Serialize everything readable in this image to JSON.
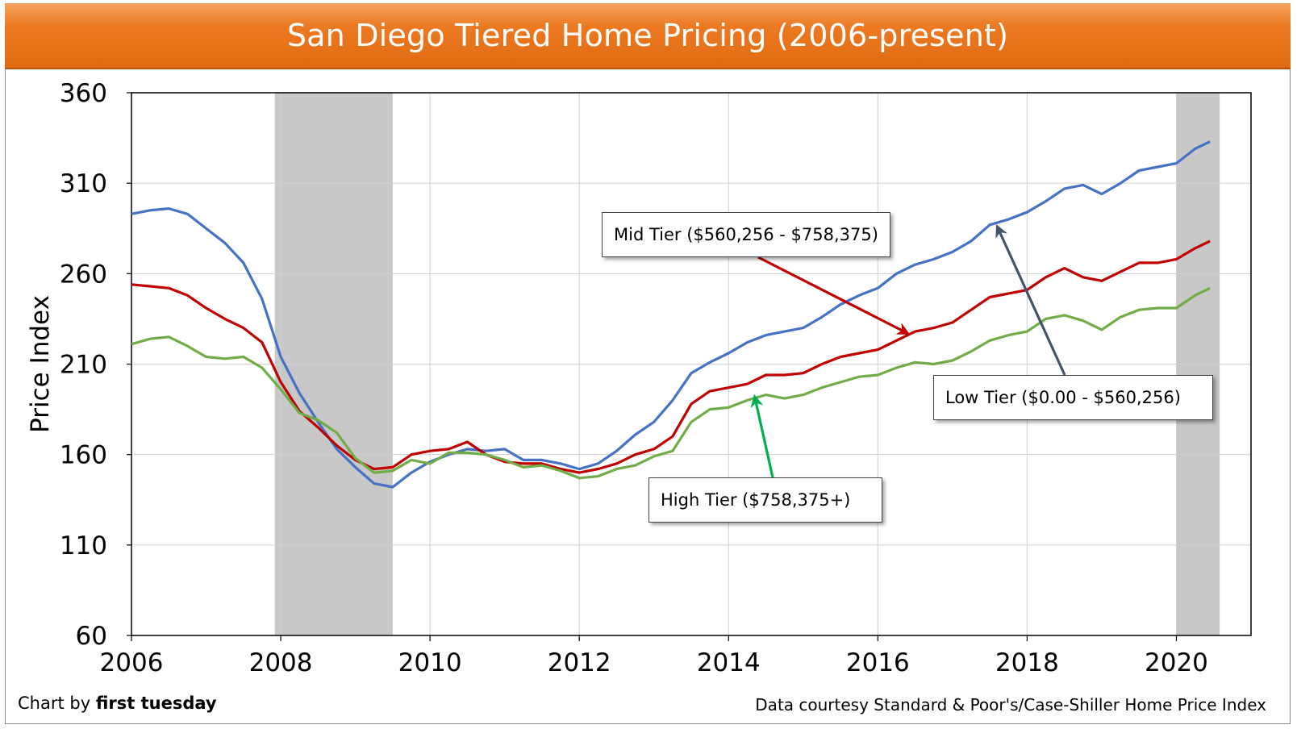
{
  "chart_data": {
    "type": "line",
    "title": "San Diego Tiered Home Pricing (2006-present)",
    "ylabel": "Price Index",
    "xlabel": "",
    "xlim": [
      2006,
      2021
    ],
    "ylim": [
      60,
      360
    ],
    "x_ticks": [
      "2006",
      "2008",
      "2010",
      "2012",
      "2014",
      "2016",
      "2018",
      "2020"
    ],
    "y_ticks": [
      "60",
      "110",
      "160",
      "210",
      "260",
      "310",
      "360"
    ],
    "grid": true,
    "recession_bands": [
      [
        2007.92,
        2009.5
      ],
      [
        2020.0,
        2020.58
      ]
    ],
    "series": [
      {
        "name": "Low Tier ($0.00 - $560,256)",
        "color": "#4472c4",
        "points": [
          [
            2006.0,
            293
          ],
          [
            2006.25,
            295
          ],
          [
            2006.5,
            296
          ],
          [
            2006.75,
            293
          ],
          [
            2007.0,
            285
          ],
          [
            2007.25,
            277
          ],
          [
            2007.5,
            266
          ],
          [
            2007.75,
            246
          ],
          [
            2008.0,
            214
          ],
          [
            2008.25,
            194
          ],
          [
            2008.5,
            178
          ],
          [
            2008.75,
            163
          ],
          [
            2009.0,
            153
          ],
          [
            2009.25,
            144
          ],
          [
            2009.5,
            142
          ],
          [
            2009.75,
            150
          ],
          [
            2010.0,
            156
          ],
          [
            2010.25,
            160
          ],
          [
            2010.5,
            163
          ],
          [
            2010.75,
            162
          ],
          [
            2011.0,
            163
          ],
          [
            2011.25,
            157
          ],
          [
            2011.5,
            157
          ],
          [
            2011.75,
            155
          ],
          [
            2012.0,
            152
          ],
          [
            2012.25,
            155
          ],
          [
            2012.5,
            162
          ],
          [
            2012.75,
            171
          ],
          [
            2013.0,
            178
          ],
          [
            2013.25,
            190
          ],
          [
            2013.5,
            205
          ],
          [
            2013.75,
            211
          ],
          [
            2014.0,
            216
          ],
          [
            2014.25,
            222
          ],
          [
            2014.5,
            226
          ],
          [
            2014.75,
            228
          ],
          [
            2015.0,
            230
          ],
          [
            2015.25,
            236
          ],
          [
            2015.5,
            243
          ],
          [
            2015.75,
            248
          ],
          [
            2016.0,
            252
          ],
          [
            2016.25,
            260
          ],
          [
            2016.5,
            265
          ],
          [
            2016.75,
            268
          ],
          [
            2017.0,
            272
          ],
          [
            2017.25,
            278
          ],
          [
            2017.5,
            287
          ],
          [
            2017.75,
            290
          ],
          [
            2018.0,
            294
          ],
          [
            2018.25,
            300
          ],
          [
            2018.5,
            307
          ],
          [
            2018.75,
            309
          ],
          [
            2019.0,
            304
          ],
          [
            2019.25,
            310
          ],
          [
            2019.5,
            317
          ],
          [
            2019.75,
            319
          ],
          [
            2020.0,
            321
          ],
          [
            2020.25,
            329
          ],
          [
            2020.45,
            333
          ]
        ]
      },
      {
        "name": "Mid Tier ($560,256 - $758,375)",
        "color": "#c00000",
        "points": [
          [
            2006.0,
            254
          ],
          [
            2006.25,
            253
          ],
          [
            2006.5,
            252
          ],
          [
            2006.75,
            248
          ],
          [
            2007.0,
            241
          ],
          [
            2007.25,
            235
          ],
          [
            2007.5,
            230
          ],
          [
            2007.75,
            222
          ],
          [
            2008.0,
            200
          ],
          [
            2008.25,
            184
          ],
          [
            2008.5,
            175
          ],
          [
            2008.75,
            165
          ],
          [
            2009.0,
            157
          ],
          [
            2009.25,
            152
          ],
          [
            2009.5,
            153
          ],
          [
            2009.75,
            160
          ],
          [
            2010.0,
            162
          ],
          [
            2010.25,
            163
          ],
          [
            2010.5,
            167
          ],
          [
            2010.75,
            160
          ],
          [
            2011.0,
            156
          ],
          [
            2011.25,
            155
          ],
          [
            2011.5,
            155
          ],
          [
            2011.75,
            152
          ],
          [
            2012.0,
            150
          ],
          [
            2012.25,
            152
          ],
          [
            2012.5,
            155
          ],
          [
            2012.75,
            160
          ],
          [
            2013.0,
            163
          ],
          [
            2013.25,
            170
          ],
          [
            2013.5,
            188
          ],
          [
            2013.75,
            195
          ],
          [
            2014.0,
            197
          ],
          [
            2014.25,
            199
          ],
          [
            2014.5,
            204
          ],
          [
            2014.75,
            204
          ],
          [
            2015.0,
            205
          ],
          [
            2015.25,
            210
          ],
          [
            2015.5,
            214
          ],
          [
            2015.75,
            216
          ],
          [
            2016.0,
            218
          ],
          [
            2016.25,
            223
          ],
          [
            2016.5,
            228
          ],
          [
            2016.75,
            230
          ],
          [
            2017.0,
            233
          ],
          [
            2017.25,
            240
          ],
          [
            2017.5,
            247
          ],
          [
            2017.75,
            249
          ],
          [
            2018.0,
            251
          ],
          [
            2018.25,
            258
          ],
          [
            2018.5,
            263
          ],
          [
            2018.75,
            258
          ],
          [
            2019.0,
            256
          ],
          [
            2019.25,
            261
          ],
          [
            2019.5,
            266
          ],
          [
            2019.75,
            266
          ],
          [
            2020.0,
            268
          ],
          [
            2020.25,
            274
          ],
          [
            2020.45,
            278
          ]
        ]
      },
      {
        "name": "High Tier ($758,375+)",
        "color": "#70ad47",
        "points": [
          [
            2006.0,
            221
          ],
          [
            2006.25,
            224
          ],
          [
            2006.5,
            225
          ],
          [
            2006.75,
            220
          ],
          [
            2007.0,
            214
          ],
          [
            2007.25,
            213
          ],
          [
            2007.5,
            214
          ],
          [
            2007.75,
            208
          ],
          [
            2008.0,
            196
          ],
          [
            2008.25,
            183
          ],
          [
            2008.5,
            179
          ],
          [
            2008.75,
            172
          ],
          [
            2009.0,
            158
          ],
          [
            2009.25,
            150
          ],
          [
            2009.5,
            151
          ],
          [
            2009.75,
            157
          ],
          [
            2010.0,
            155
          ],
          [
            2010.25,
            161
          ],
          [
            2010.5,
            161
          ],
          [
            2010.75,
            160
          ],
          [
            2011.0,
            157
          ],
          [
            2011.25,
            153
          ],
          [
            2011.5,
            154
          ],
          [
            2011.75,
            151
          ],
          [
            2012.0,
            147
          ],
          [
            2012.25,
            148
          ],
          [
            2012.5,
            152
          ],
          [
            2012.75,
            154
          ],
          [
            2013.0,
            159
          ],
          [
            2013.25,
            162
          ],
          [
            2013.5,
            178
          ],
          [
            2013.75,
            185
          ],
          [
            2014.0,
            186
          ],
          [
            2014.25,
            190
          ],
          [
            2014.5,
            193
          ],
          [
            2014.75,
            191
          ],
          [
            2015.0,
            193
          ],
          [
            2015.25,
            197
          ],
          [
            2015.5,
            200
          ],
          [
            2015.75,
            203
          ],
          [
            2016.0,
            204
          ],
          [
            2016.25,
            208
          ],
          [
            2016.5,
            211
          ],
          [
            2016.75,
            210
          ],
          [
            2017.0,
            212
          ],
          [
            2017.25,
            217
          ],
          [
            2017.5,
            223
          ],
          [
            2017.75,
            226
          ],
          [
            2018.0,
            228
          ],
          [
            2018.25,
            235
          ],
          [
            2018.5,
            237
          ],
          [
            2018.75,
            234
          ],
          [
            2019.0,
            229
          ],
          [
            2019.25,
            236
          ],
          [
            2019.5,
            240
          ],
          [
            2019.75,
            241
          ],
          [
            2020.0,
            241
          ],
          [
            2020.25,
            248
          ],
          [
            2020.45,
            252
          ]
        ]
      }
    ],
    "annotations": [
      {
        "text": "Mid Tier ($560,256 - $758,375)",
        "series": "Mid Tier ($560,256 - $758,375)",
        "arrow_to": [
          2016.4,
          227
        ]
      },
      {
        "text": "Low Tier ($0.00 - $560,256)",
        "series": "Low Tier ($0.00 - $560,256)",
        "arrow_to": [
          2017.6,
          286
        ]
      },
      {
        "text": "High Tier ($758,375+)",
        "series": "High Tier ($758,375+)",
        "arrow_to": [
          2014.35,
          192
        ]
      }
    ]
  },
  "footer": {
    "credit_prefix": "Chart by ",
    "credit_brand": "first tuesday",
    "source": "Data courtesy Standard & Poor's/Case-Shiller Home Price Index"
  }
}
